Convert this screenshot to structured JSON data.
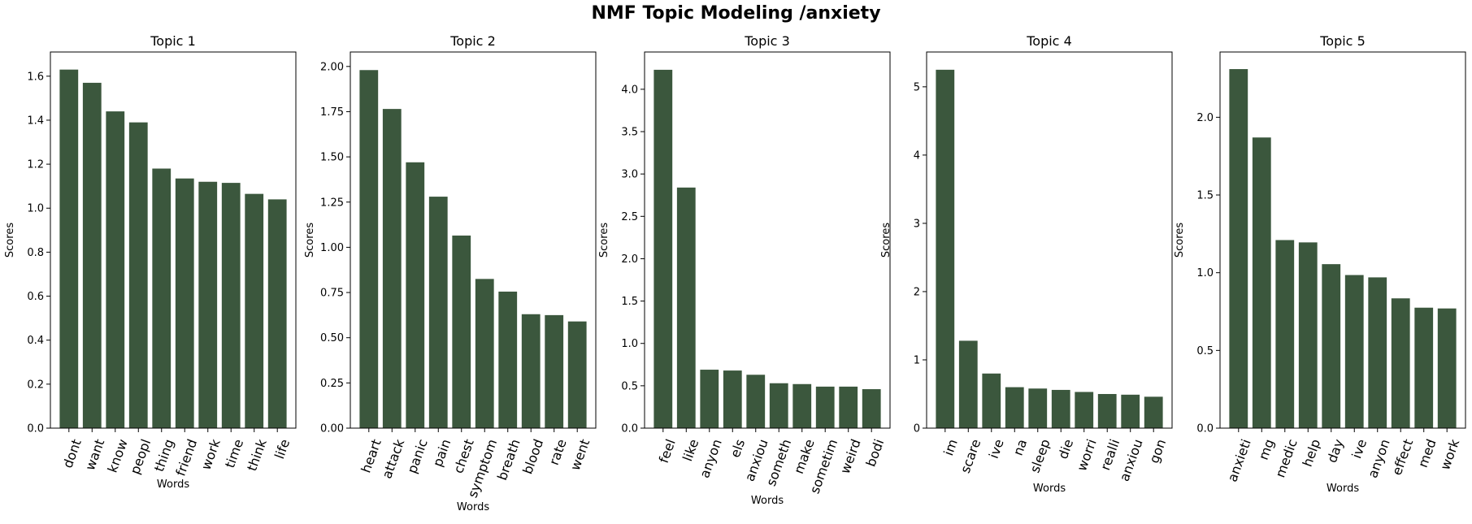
{
  "figure": {
    "title": "NMF Topic Modeling /anxiety",
    "bar_color": "#3b573d"
  },
  "chart_data": [
    {
      "type": "bar",
      "title": "Topic 1",
      "xlabel": "Words",
      "ylabel": "Scores",
      "categories": [
        "dont",
        "want",
        "know",
        "peopl",
        "thing",
        "friend",
        "work",
        "time",
        "think",
        "life"
      ],
      "values": [
        1.63,
        1.57,
        1.44,
        1.39,
        1.18,
        1.135,
        1.12,
        1.115,
        1.065,
        1.04
      ],
      "ylim": [
        0,
        1.71
      ],
      "yticks": [
        0.0,
        0.2,
        0.4,
        0.6,
        0.8,
        1.0,
        1.2,
        1.4,
        1.6
      ],
      "ytick_labels": [
        "0.0",
        "0.2",
        "0.4",
        "0.6",
        "0.8",
        "1.0",
        "1.2",
        "1.4",
        "1.6"
      ]
    },
    {
      "type": "bar",
      "title": "Topic 2",
      "xlabel": "Words",
      "ylabel": "Scores",
      "categories": [
        "heart",
        "attack",
        "panic",
        "pain",
        "chest",
        "symptom",
        "breath",
        "blood",
        "rate",
        "went"
      ],
      "values": [
        1.98,
        1.765,
        1.47,
        1.28,
        1.065,
        0.825,
        0.755,
        0.63,
        0.625,
        0.59
      ],
      "ylim": [
        0,
        2.08
      ],
      "yticks": [
        0.0,
        0.25,
        0.5,
        0.75,
        1.0,
        1.25,
        1.5,
        1.75,
        2.0
      ],
      "ytick_labels": [
        "0.00",
        "0.25",
        "0.50",
        "0.75",
        "1.00",
        "1.25",
        "1.50",
        "1.75",
        "2.00"
      ]
    },
    {
      "type": "bar",
      "title": "Topic 3",
      "xlabel": "Words",
      "ylabel": "Scores",
      "categories": [
        "feel",
        "like",
        "anyon",
        "els",
        "anxiou",
        "someth",
        "make",
        "sometim",
        "weird",
        "bodi"
      ],
      "values": [
        4.23,
        2.84,
        0.69,
        0.68,
        0.63,
        0.53,
        0.52,
        0.49,
        0.49,
        0.46
      ],
      "ylim": [
        0,
        4.44
      ],
      "yticks": [
        0.0,
        0.5,
        1.0,
        1.5,
        2.0,
        2.5,
        3.0,
        3.5,
        4.0
      ],
      "ytick_labels": [
        "0.0",
        "0.5",
        "1.0",
        "1.5",
        "2.0",
        "2.5",
        "3.0",
        "3.5",
        "4.0"
      ]
    },
    {
      "type": "bar",
      "title": "Topic 4",
      "xlabel": "Words",
      "ylabel": "Scores",
      "categories": [
        "im",
        "scare",
        "ive",
        "na",
        "sleep",
        "die",
        "worri",
        "realli",
        "anxiou",
        "gon"
      ],
      "values": [
        5.25,
        1.28,
        0.8,
        0.6,
        0.58,
        0.56,
        0.53,
        0.5,
        0.49,
        0.46
      ],
      "ylim": [
        0,
        5.51
      ],
      "yticks": [
        0,
        1,
        2,
        3,
        4,
        5
      ],
      "ytick_labels": [
        "0",
        "1",
        "2",
        "3",
        "4",
        "5"
      ]
    },
    {
      "type": "bar",
      "title": "Topic 5",
      "xlabel": "Words",
      "ylabel": "Scores",
      "categories": [
        "anxieti",
        "mg",
        "medic",
        "help",
        "day",
        "ive",
        "anyon",
        "effect",
        "med",
        "work"
      ],
      "values": [
        2.31,
        1.87,
        1.21,
        1.195,
        1.055,
        0.985,
        0.97,
        0.835,
        0.775,
        0.77
      ],
      "ylim": [
        0,
        2.42
      ],
      "yticks": [
        0.0,
        0.5,
        1.0,
        1.5,
        2.0
      ],
      "ytick_labels": [
        "0.0",
        "0.5",
        "1.0",
        "1.5",
        "2.0"
      ]
    }
  ]
}
